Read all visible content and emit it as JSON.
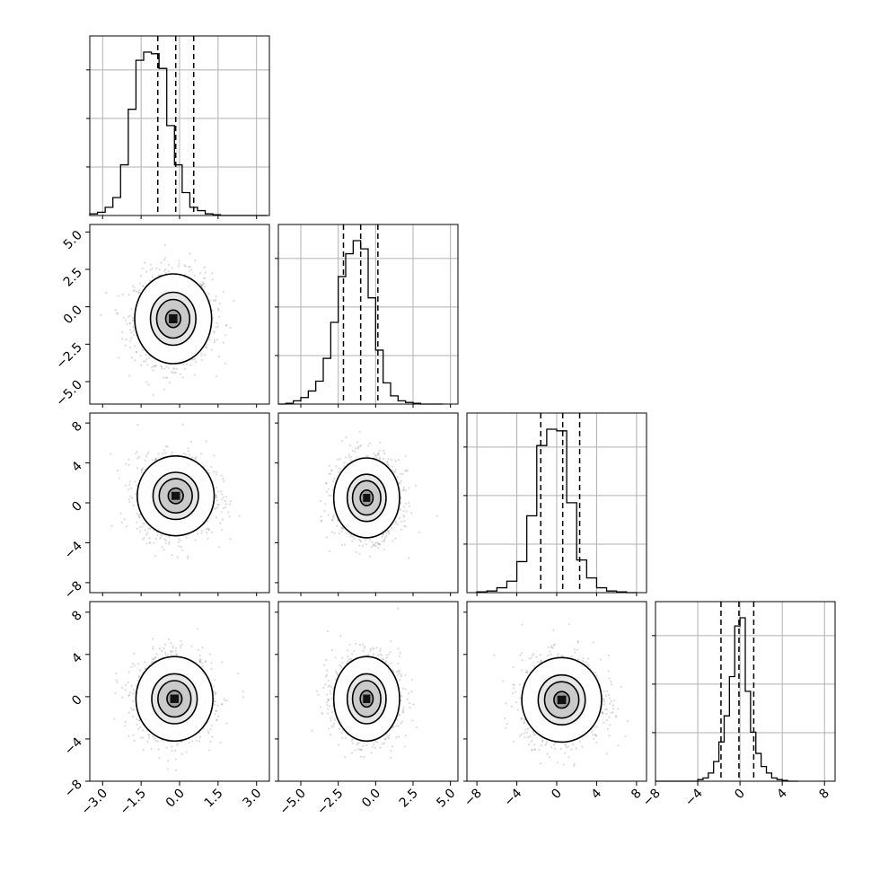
{
  "chart_data": {
    "type": "corner",
    "title": "",
    "parameters": 4,
    "grid": true,
    "legend": "none",
    "axes": [
      {
        "range": [
          -3.5,
          3.5
        ],
        "ticks": [
          -3.0,
          -1.5,
          0.0,
          1.5,
          3.0
        ],
        "tick_labels": [
          "−3.0",
          "−1.5",
          "0.0",
          "1.5",
          "3.0"
        ]
      },
      {
        "range": [
          -6.5,
          5.5
        ],
        "ticks": [
          -5.0,
          -2.5,
          0.0,
          2.5,
          5.0
        ],
        "tick_labels": [
          "−5.0",
          "−2.5",
          "0.0",
          "2.5",
          "5.0"
        ]
      },
      {
        "range": [
          -9.0,
          9.0
        ],
        "ticks": [
          -8,
          -4,
          0,
          4,
          8
        ],
        "tick_labels": [
          "−8",
          "−4",
          "0",
          "4",
          "8"
        ]
      },
      {
        "range": [
          -8.0,
          9.0
        ],
        "ticks": [
          -8,
          -4,
          0,
          4,
          8
        ],
        "tick_labels": [
          "−8",
          "−4",
          "0",
          "4",
          "8"
        ]
      }
    ],
    "histograms": [
      {
        "param": 0,
        "bin_edges": [
          -3.5,
          -3.2,
          -2.9,
          -2.6,
          -2.3,
          -2.0,
          -1.7,
          -1.4,
          -1.1,
          -0.8,
          -0.5,
          -0.2,
          0.1,
          0.4,
          0.7,
          1.0,
          1.3,
          1.6,
          1.9,
          2.2,
          2.5,
          2.8,
          3.1,
          3.4
        ],
        "counts": [
          0.01,
          0.02,
          0.05,
          0.11,
          0.31,
          0.65,
          0.95,
          1.0,
          0.99,
          0.9,
          0.55,
          0.31,
          0.14,
          0.05,
          0.03,
          0.01,
          0.005,
          0,
          0,
          0,
          0,
          0,
          0
        ],
        "quantiles": [
          -0.85,
          -0.15,
          0.55
        ]
      },
      {
        "param": 1,
        "bin_edges": [
          -6.5,
          -6.0,
          -5.5,
          -5.0,
          -4.5,
          -4.0,
          -3.5,
          -3.0,
          -2.5,
          -2.0,
          -1.5,
          -1.0,
          -0.5,
          0.0,
          0.5,
          1.0,
          1.5,
          2.0,
          2.5,
          3.0,
          3.5,
          4.0,
          4.5
        ],
        "counts": [
          0,
          0.005,
          0.02,
          0.04,
          0.08,
          0.14,
          0.28,
          0.5,
          0.78,
          0.92,
          1.0,
          0.95,
          0.65,
          0.33,
          0.13,
          0.05,
          0.02,
          0.01,
          0.005,
          0,
          0,
          0
        ],
        "quantiles": [
          -2.15,
          -1.0,
          0.15
        ]
      },
      {
        "param": 2,
        "bin_edges": [
          -8,
          -7,
          -6,
          -5,
          -4,
          -3,
          -2,
          -1,
          0,
          1,
          2,
          3,
          4,
          5,
          6,
          7,
          8
        ],
        "counts": [
          0.005,
          0.01,
          0.03,
          0.07,
          0.19,
          0.47,
          0.9,
          1.0,
          0.99,
          0.55,
          0.2,
          0.09,
          0.03,
          0.01,
          0.005,
          0
        ],
        "quantiles": [
          -1.6,
          0.6,
          2.3
        ]
      },
      {
        "param": 3,
        "bin_edges": [
          -8.0,
          -7.5,
          -7.0,
          -6.5,
          -6.0,
          -5.5,
          -5.0,
          -4.5,
          -4.0,
          -3.5,
          -3.0,
          -2.5,
          -2.0,
          -1.5,
          -1.0,
          -0.5,
          0.0,
          0.5,
          1.0,
          1.5,
          2.0,
          2.5,
          3.0,
          3.5,
          4.0,
          4.5,
          5.0,
          5.5
        ],
        "counts": [
          0,
          0,
          0,
          0,
          0,
          0,
          0,
          0,
          0.01,
          0.02,
          0.05,
          0.12,
          0.24,
          0.4,
          0.64,
          0.95,
          1.0,
          0.55,
          0.3,
          0.17,
          0.09,
          0.05,
          0.02,
          0.01,
          0.005,
          0,
          0
        ],
        "quantiles": [
          -1.8,
          -0.1,
          1.3
        ]
      }
    ],
    "scatter_panels": [
      {
        "row": 1,
        "col": 0,
        "center": [
          -0.25,
          -0.8
        ],
        "sd": [
          0.75,
          1.5
        ]
      },
      {
        "row": 2,
        "col": 0,
        "center": [
          -0.15,
          0.7
        ],
        "sd": [
          0.75,
          2.0
        ]
      },
      {
        "row": 2,
        "col": 1,
        "center": [
          -0.6,
          0.5
        ],
        "sd": [
          1.1,
          2.0
        ]
      },
      {
        "row": 3,
        "col": 0,
        "center": [
          -0.2,
          -0.2
        ],
        "sd": [
          0.75,
          2.0
        ]
      },
      {
        "row": 3,
        "col": 1,
        "center": [
          -0.6,
          -0.2
        ],
        "sd": [
          1.1,
          2.0
        ]
      },
      {
        "row": 3,
        "col": 2,
        "center": [
          0.5,
          -0.3
        ],
        "sd": [
          2.0,
          2.0
        ]
      }
    ],
    "contour_levels": [
      0.39,
      0.86,
      1.18,
      2.0
    ],
    "scatter_color": "#999999",
    "line_color": "#000000",
    "grid_color": "#b0b0b0"
  }
}
